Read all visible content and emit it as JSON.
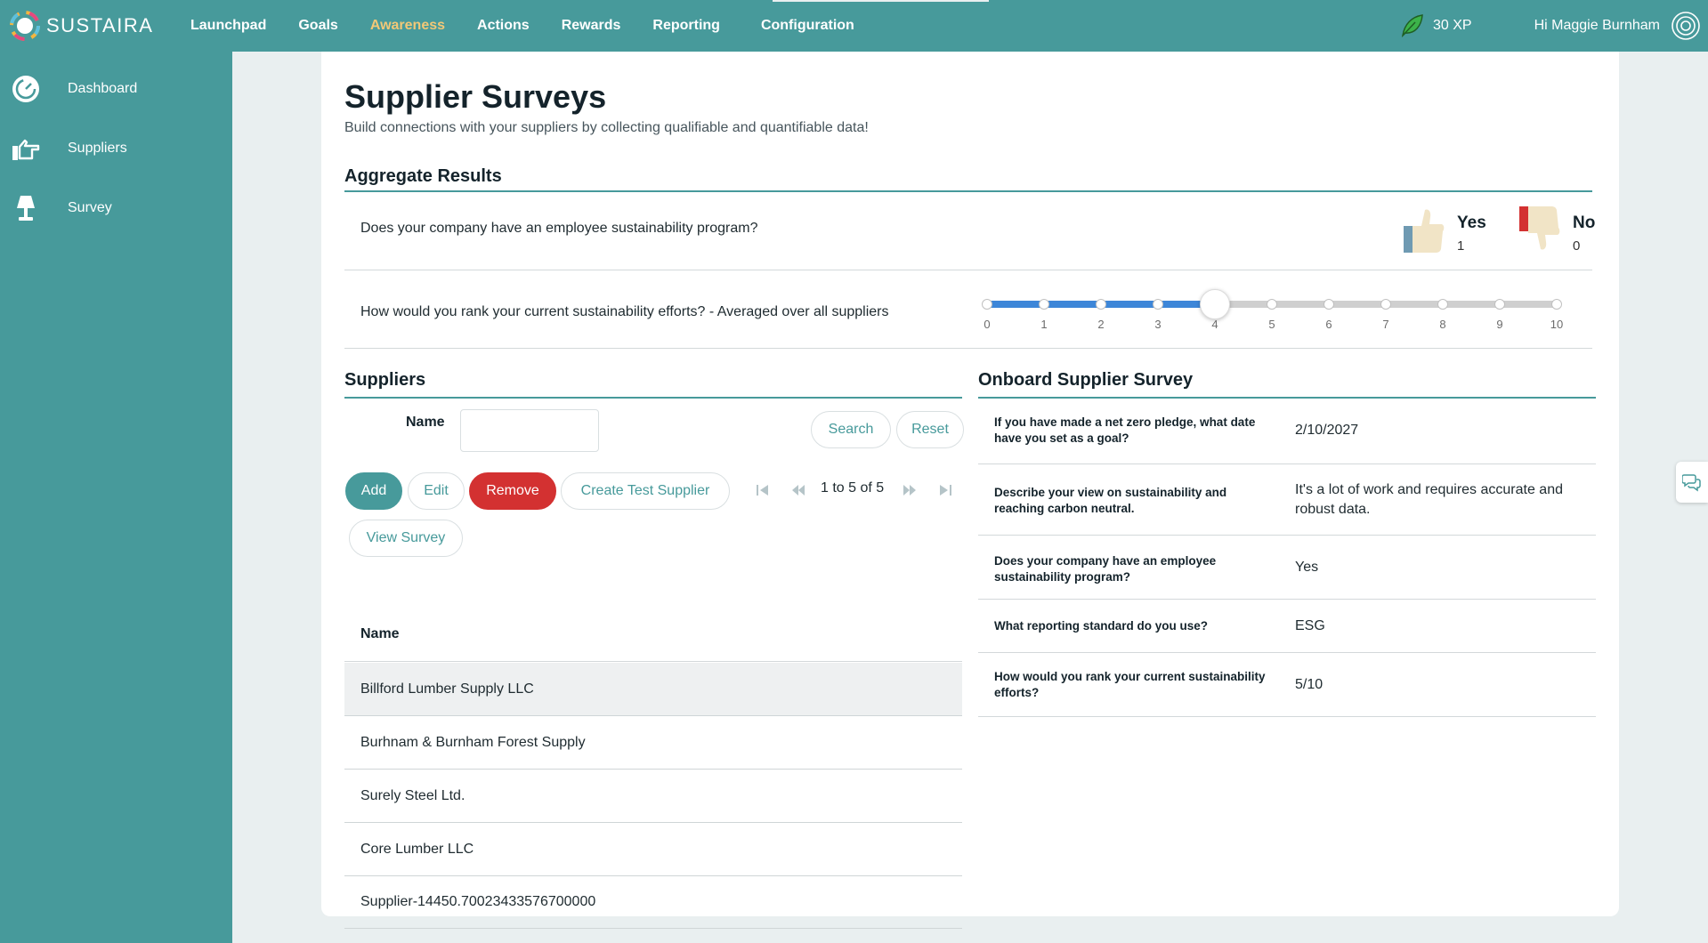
{
  "app": {
    "name": "SUSTAIRA"
  },
  "nav": {
    "items": [
      {
        "label": "Launchpad"
      },
      {
        "label": "Goals"
      },
      {
        "label": "Awareness",
        "active": true
      },
      {
        "label": "Actions"
      },
      {
        "label": "Rewards"
      },
      {
        "label": "Reporting"
      },
      {
        "label": "Configuration"
      }
    ],
    "xp": "30 XP",
    "greeting": "Hi Maggie Burnham"
  },
  "sidebar": {
    "items": [
      {
        "label": "Dashboard",
        "icon": "gauge-icon"
      },
      {
        "label": "Suppliers",
        "icon": "hand-pointing-icon"
      },
      {
        "label": "Survey",
        "icon": "lamp-icon"
      }
    ]
  },
  "page": {
    "title": "Supplier Surveys",
    "subtitle": "Build connections with your suppliers by collecting qualifiable and quantifiable data!"
  },
  "aggregate": {
    "title": "Aggregate Results",
    "q1": {
      "text": "Does your company have an employee sustainability program?",
      "yes_label": "Yes",
      "yes_count": "1",
      "no_label": "No",
      "no_count": "0"
    },
    "q2": {
      "text": "How would you rank your current sustainability efforts? - Averaged over all suppliers",
      "value": 4,
      "min": 0,
      "max": 10,
      "ticks": [
        "0",
        "1",
        "2",
        "3",
        "4",
        "5",
        "6",
        "7",
        "8",
        "9",
        "10"
      ]
    }
  },
  "suppliers": {
    "title": "Suppliers",
    "name_label": "Name",
    "search_button": "Search",
    "reset_button": "Reset",
    "add_button": "Add",
    "edit_button": "Edit",
    "remove_button": "Remove",
    "create_test_button": "Create Test Supplier",
    "view_survey_button": "View Survey",
    "pager_text": "1 to 5 of 5",
    "column_header": "Name",
    "rows": [
      "Billford Lumber Supply LLC",
      "Burhnam & Burnham Forest Supply",
      "Surely Steel Ltd.",
      "Core Lumber LLC",
      "Supplier-14450.70023433576700000"
    ]
  },
  "onboard": {
    "title": "Onboard Supplier Survey",
    "rows": [
      {
        "q": "If you have made a net zero pledge, what date have you set as a goal?",
        "a": "2/10/2027"
      },
      {
        "q": "Describe your view on sustainability and reaching carbon neutral.",
        "a": "It's a lot of work and requires accurate and robust data."
      },
      {
        "q": "Does your company have an employee sustainability program?",
        "a": "Yes"
      },
      {
        "q": "What reporting standard do you use?",
        "a": "ESG"
      },
      {
        "q": "How would you rank your current sustainability efforts?",
        "a": "5/10"
      }
    ]
  },
  "colors": {
    "brand": "#479a9b",
    "active_nav": "#f2c877",
    "danger": "#d33131",
    "slider_fill": "#3d86d8"
  }
}
